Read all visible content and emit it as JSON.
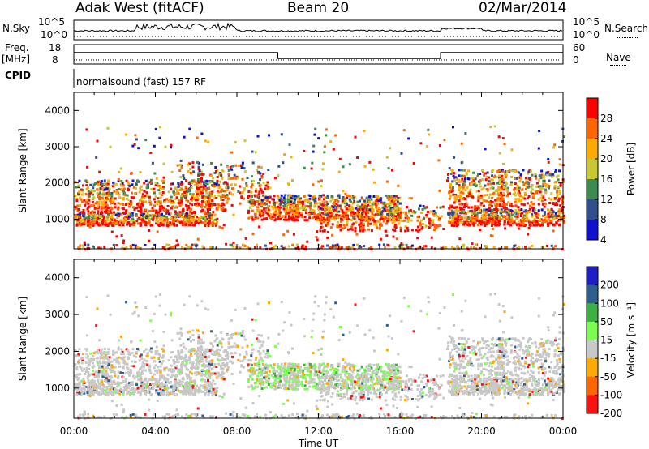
{
  "header": {
    "radar": "Adak West (fitACF)",
    "beam": "Beam 20",
    "date": "02/Mar/2014"
  },
  "top_panels": {
    "nsky_label": "N.Sky",
    "nsky_ticks": [
      "10^5",
      "10^0"
    ],
    "nsearch_label": "N.Search",
    "nsearch_ticks": [
      "10^5",
      "10^0"
    ],
    "freq_label_1": "Freq.",
    "freq_label_2": "[MHz]",
    "freq_ticks": [
      "18",
      "8"
    ],
    "nave_label": "Nave",
    "nave_ticks": [
      "60",
      "0"
    ],
    "cpid_label": "CPID",
    "cpid_text": "normalsound (fast) 157 RF"
  },
  "chart_data": [
    {
      "type": "heatmap",
      "name": "power",
      "ylabel": "Slant Range [km]",
      "y_ticks": [
        "4000",
        "3000",
        "2000",
        "1000"
      ],
      "ylim": [
        180,
        4500
      ],
      "colorbar_label": "Power [dB]",
      "colorbar_ticks": [
        "28",
        "24",
        "20",
        "16",
        "12",
        "8",
        "4"
      ],
      "colors": [
        "#ff0000",
        "#ff6600",
        "#ffaa00",
        "#c8c832",
        "#3c8c50",
        "#2f4f8f",
        "#1010d0"
      ]
    },
    {
      "type": "heatmap",
      "name": "velocity",
      "ylabel": "Slant Range [km]",
      "y_ticks": [
        "4000",
        "3000",
        "2000",
        "1000"
      ],
      "ylim": [
        180,
        4500
      ],
      "colorbar_label": "Velocity [m s⁻¹]",
      "colorbar_ticks": [
        "200",
        "100",
        "50",
        "15",
        "-15",
        "-50",
        "-100",
        "-200"
      ],
      "colors": [
        "#1e1ec8",
        "#2e5f8f",
        "#3cb040",
        "#78ff50",
        "#c8c8c8",
        "#ffaa00",
        "#ff6600",
        "#ff1010"
      ]
    }
  ],
  "x_axis": {
    "ticks": [
      "00:00",
      "04:00",
      "08:00",
      "12:00",
      "16:00",
      "20:00",
      "00:00"
    ],
    "label": "Time UT"
  }
}
